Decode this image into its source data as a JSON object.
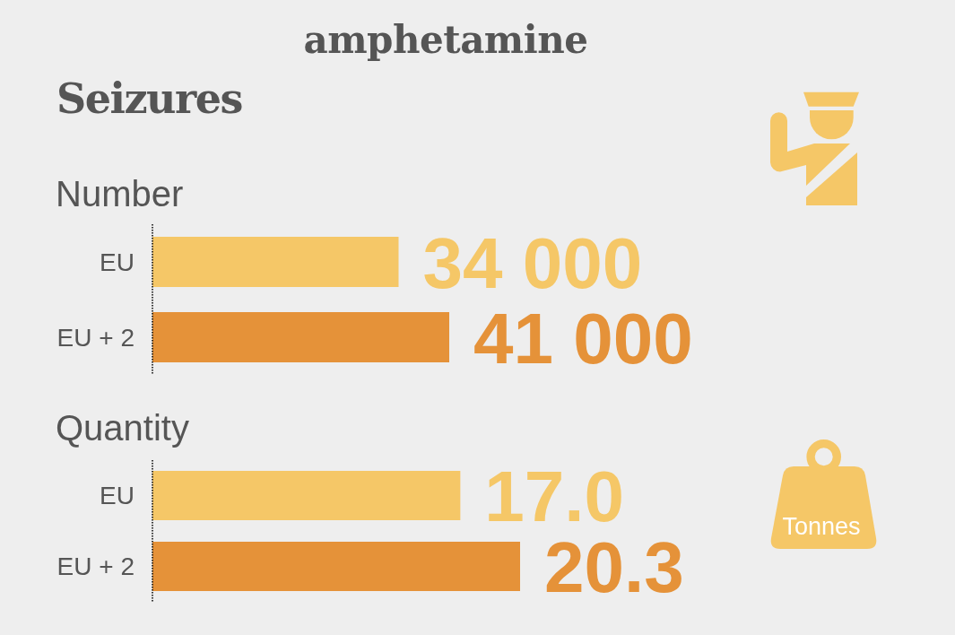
{
  "chart_data": [
    {
      "type": "other",
      "title": "amphetamine",
      "subtitle": "Seizures"
    },
    {
      "type": "bar",
      "title": "Number",
      "orientation": "horizontal",
      "categories": [
        "EU",
        "EU + 2"
      ],
      "values": [
        34000,
        41000
      ],
      "colors": [
        "#f5c767",
        "#e59239"
      ],
      "value_labels": [
        "34 000",
        "41 000"
      ],
      "tick_labels": "y"
    },
    {
      "type": "bar",
      "title": "Quantity",
      "orientation": "horizontal",
      "categories": [
        "EU",
        "EU + 2"
      ],
      "values": [
        17.0,
        20.3
      ],
      "colors": [
        "#f5c767",
        "#e59239"
      ],
      "value_labels": [
        "17.0",
        "20.3"
      ],
      "tick_labels": "y",
      "annotations": [
        "Tonnes"
      ]
    }
  ]
}
